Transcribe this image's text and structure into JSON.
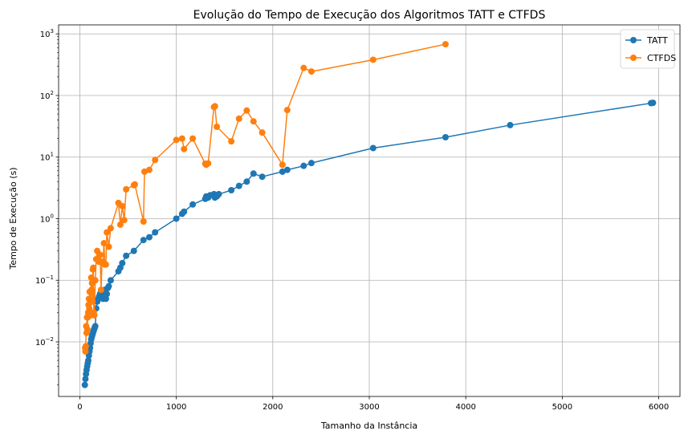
{
  "chart_data": {
    "type": "line",
    "title": "Evolução do Tempo de Execução dos Algoritmos TATT e CTFDS",
    "xlabel": "Tamanho da Instância",
    "ylabel": "Tempo de Execução (s)",
    "xlim": [
      -220,
      6220
    ],
    "ylim": [
      0.0013,
      1400
    ],
    "yscale": "log",
    "x_ticks": [
      0,
      1000,
      2000,
      3000,
      4000,
      5000,
      6000
    ],
    "y_ticks": [
      {
        "value": 0.01,
        "base": "10",
        "exp": "−2"
      },
      {
        "value": 0.1,
        "base": "10",
        "exp": "−1"
      },
      {
        "value": 1,
        "base": "10",
        "exp": "0"
      },
      {
        "value": 10,
        "base": "10",
        "exp": "1"
      },
      {
        "value": 100,
        "base": "10",
        "exp": "2"
      },
      {
        "value": 1000,
        "base": "10",
        "exp": "3"
      }
    ],
    "grid": true,
    "legend_position": "top-right",
    "series": [
      {
        "name": "TATT",
        "color": "#1f77b4",
        "x": [
          52,
          58,
          64,
          70,
          76,
          82,
          88,
          94,
          100,
          106,
          112,
          118,
          124,
          130,
          136,
          142,
          148,
          154,
          160,
          170,
          180,
          190,
          200,
          210,
          220,
          230,
          240,
          250,
          260,
          270,
          280,
          290,
          300,
          320,
          400,
          420,
          440,
          480,
          560,
          660,
          720,
          780,
          1000,
          1060,
          1080,
          1170,
          1300,
          1310,
          1330,
          1350,
          1390,
          1400,
          1420,
          1440,
          1570,
          1650,
          1730,
          1800,
          1890,
          2100,
          2150,
          2320,
          2400,
          3040,
          3790,
          4460,
          5920,
          5940
        ],
        "y": [
          0.002,
          0.0025,
          0.003,
          0.0035,
          0.004,
          0.0045,
          0.005,
          0.006,
          0.007,
          0.008,
          0.0095,
          0.011,
          0.012,
          0.013,
          0.014,
          0.015,
          0.016,
          0.017,
          0.018,
          0.035,
          0.045,
          0.05,
          0.055,
          0.06,
          0.065,
          0.055,
          0.05,
          0.06,
          0.07,
          0.05,
          0.06,
          0.075,
          0.08,
          0.1,
          0.14,
          0.16,
          0.19,
          0.25,
          0.3,
          0.45,
          0.5,
          0.6,
          1.0,
          1.2,
          1.3,
          1.7,
          2.1,
          2.3,
          2.2,
          2.4,
          2.5,
          2.2,
          2.3,
          2.5,
          2.9,
          3.4,
          4.0,
          5.4,
          4.8,
          5.8,
          6.2,
          7.2,
          8.0,
          14.0,
          21.0,
          33.0,
          75.0,
          76.0
        ]
      },
      {
        "name": "CTFDS",
        "color": "#ff7f0e",
        "x": [
          55,
          58,
          62,
          66,
          70,
          74,
          78,
          82,
          86,
          90,
          94,
          98,
          102,
          106,
          110,
          114,
          118,
          122,
          126,
          130,
          135,
          140,
          145,
          150,
          160,
          170,
          180,
          190,
          200,
          210,
          220,
          230,
          240,
          250,
          260,
          270,
          280,
          300,
          320,
          400,
          420,
          440,
          460,
          480,
          560,
          570,
          660,
          670,
          720,
          780,
          1000,
          1060,
          1080,
          1170,
          1300,
          1310,
          1330,
          1390,
          1400,
          1420,
          1570,
          1650,
          1730,
          1800,
          1890,
          2100,
          2150,
          2320,
          2400,
          3040,
          3790
        ],
        "y": [
          0.008,
          0.007,
          0.0085,
          0.018,
          0.014,
          0.025,
          0.016,
          0.025,
          0.03,
          0.04,
          0.05,
          0.035,
          0.065,
          0.03,
          0.027,
          0.045,
          0.11,
          0.07,
          0.09,
          0.045,
          0.15,
          0.16,
          0.03,
          0.027,
          0.1,
          0.22,
          0.3,
          0.22,
          0.2,
          0.26,
          0.07,
          0.2,
          0.19,
          0.4,
          0.18,
          0.18,
          0.6,
          0.35,
          0.7,
          1.8,
          0.8,
          1.6,
          0.95,
          3.0,
          3.5,
          3.6,
          0.9,
          5.8,
          6.2,
          9.0,
          19.0,
          20.0,
          13.5,
          20.0,
          7.8,
          7.5,
          7.9,
          65.0,
          67.0,
          31.0,
          18.0,
          42.0,
          57.0,
          38.0,
          25.0,
          7.5,
          58.0,
          280.0,
          245.0,
          380.0,
          680.0
        ]
      }
    ]
  }
}
